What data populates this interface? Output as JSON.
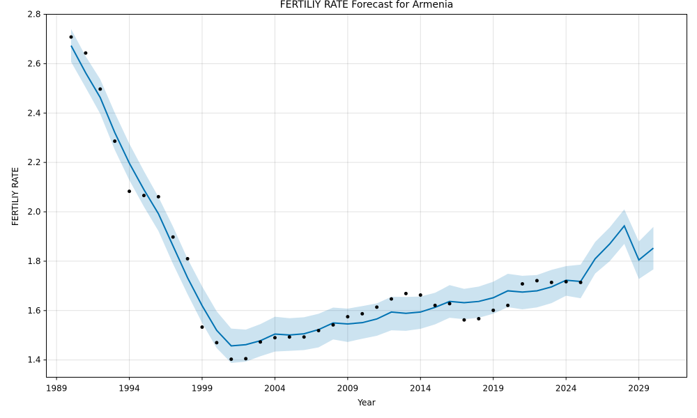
{
  "chart_data": {
    "type": "line",
    "title": "FERTILIY RATE Forecast for Armenia",
    "xlabel": "Year",
    "ylabel": "FERTILIY RATE",
    "xlim": [
      1988.3,
      2032.3
    ],
    "ylim": [
      1.33,
      2.8
    ],
    "x_ticks": [
      1989,
      1994,
      1999,
      2004,
      2009,
      2014,
      2019,
      2024,
      2029
    ],
    "y_ticks": [
      1.4,
      1.6,
      1.8,
      2.0,
      2.2,
      2.4,
      2.6,
      2.8
    ],
    "y_tick_labels": [
      "1.4",
      "1.6",
      "1.8",
      "2.0",
      "2.2",
      "2.4",
      "2.6",
      "2.8"
    ],
    "grid": true,
    "colors": {
      "forecast": "#0072b2",
      "interval": "#0072b2",
      "observed": "#000000"
    },
    "series": [
      {
        "kind": "observed",
        "x": [
          1990,
          1991,
          1992,
          1993,
          1994,
          1995,
          1996,
          1997,
          1998,
          1999,
          2000,
          2001,
          2002,
          2003,
          2004,
          2005,
          2006,
          2007,
          2008,
          2009,
          2010,
          2011,
          2012,
          2013,
          2014,
          2015,
          2016,
          2017,
          2018,
          2019,
          2020,
          2021,
          2022,
          2023,
          2024,
          2025
        ],
        "y": [
          2.708,
          2.643,
          2.497,
          2.286,
          2.083,
          2.066,
          2.061,
          1.898,
          1.81,
          1.533,
          1.47,
          1.403,
          1.405,
          1.473,
          1.49,
          1.493,
          1.493,
          1.519,
          1.542,
          1.575,
          1.587,
          1.614,
          1.647,
          1.669,
          1.663,
          1.621,
          1.628,
          1.562,
          1.567,
          1.601,
          1.621,
          1.708,
          1.721,
          1.714,
          1.717,
          1.714
        ]
      },
      {
        "kind": "forecast",
        "x": [
          1990,
          1991,
          1992,
          1993,
          1994,
          1995,
          1996,
          1997,
          1998,
          1999,
          2000,
          2001,
          2002,
          2003,
          2004,
          2005,
          2006,
          2007,
          2008,
          2009,
          2010,
          2011,
          2012,
          2013,
          2014,
          2015,
          2016,
          2017,
          2018,
          2019,
          2020,
          2021,
          2022,
          2023,
          2024,
          2025,
          2026,
          2027,
          2028,
          2029,
          2030
        ],
        "y": [
          2.673,
          2.563,
          2.463,
          2.321,
          2.197,
          2.09,
          1.992,
          1.862,
          1.733,
          1.62,
          1.52,
          1.457,
          1.462,
          1.478,
          1.505,
          1.501,
          1.506,
          1.523,
          1.55,
          1.546,
          1.551,
          1.566,
          1.594,
          1.589,
          1.594,
          1.613,
          1.637,
          1.632,
          1.637,
          1.652,
          1.68,
          1.675,
          1.68,
          1.696,
          1.723,
          1.718,
          1.81,
          1.87,
          1.943,
          1.805,
          1.853
        ],
        "lower": [
          2.607,
          2.503,
          2.397,
          2.251,
          2.128,
          2.021,
          1.922,
          1.789,
          1.666,
          1.55,
          1.448,
          1.388,
          1.393,
          1.415,
          1.434,
          1.437,
          1.44,
          1.451,
          1.483,
          1.473,
          1.486,
          1.498,
          1.52,
          1.518,
          1.526,
          1.544,
          1.571,
          1.565,
          1.571,
          1.587,
          1.614,
          1.605,
          1.613,
          1.63,
          1.66,
          1.65,
          1.75,
          1.8,
          1.87,
          1.728,
          1.767
        ],
        "upper": [
          2.74,
          2.63,
          2.537,
          2.401,
          2.276,
          2.165,
          2.06,
          1.94,
          1.81,
          1.698,
          1.597,
          1.527,
          1.523,
          1.545,
          1.575,
          1.569,
          1.573,
          1.587,
          1.612,
          1.608,
          1.618,
          1.629,
          1.656,
          1.655,
          1.657,
          1.672,
          1.703,
          1.688,
          1.697,
          1.717,
          1.749,
          1.741,
          1.744,
          1.765,
          1.78,
          1.786,
          1.878,
          1.937,
          2.01,
          1.88,
          1.939
        ]
      }
    ]
  }
}
